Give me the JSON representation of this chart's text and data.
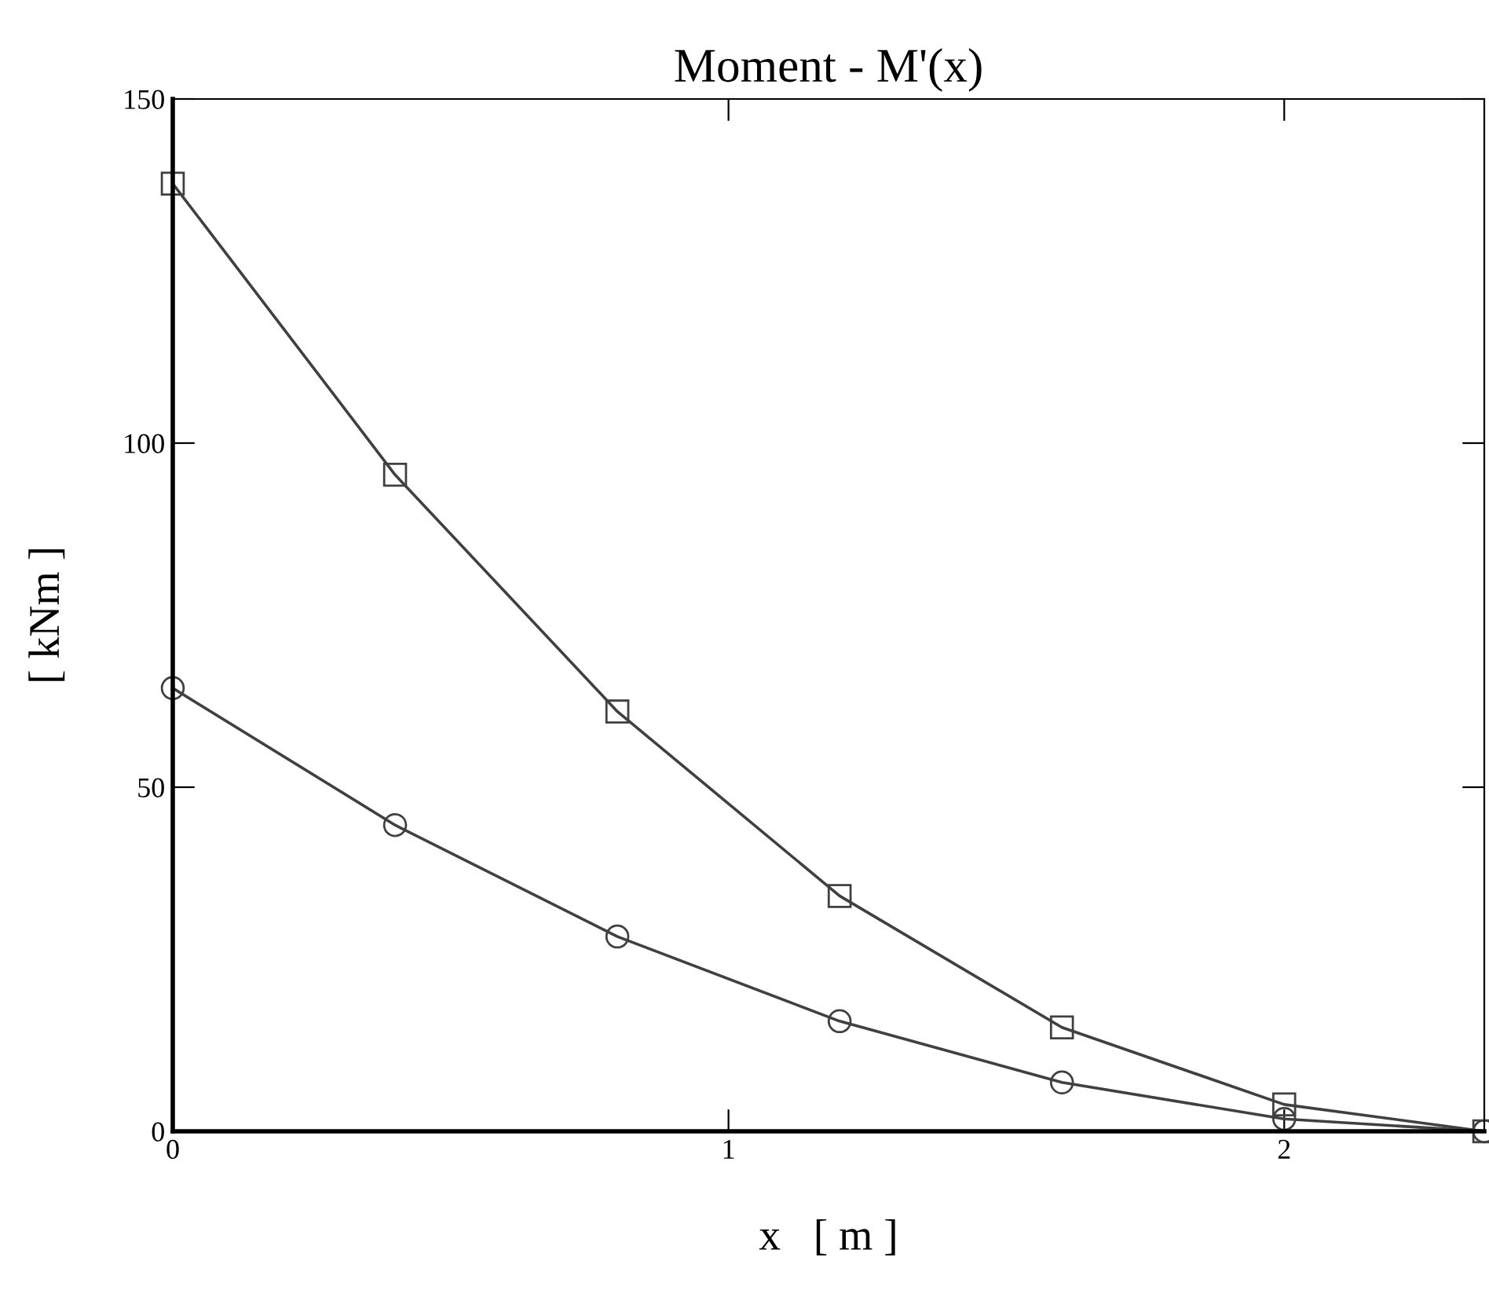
{
  "chart_data": {
    "type": "line",
    "title": "Moment - M'(x)",
    "xlabel": "x   [ m ]",
    "ylabel": "[ kNm ]",
    "x": [
      0,
      0.4,
      0.8,
      1.2,
      1.6,
      2.0,
      2.36
    ],
    "series": [
      {
        "color": "#404040",
        "marker": "square",
        "values": [
          137.7,
          95.4,
          61.0,
          34.2,
          15.1,
          3.9,
          0
        ]
      },
      {
        "color": "#404040",
        "marker": "circle",
        "values": [
          64.4,
          44.5,
          28.3,
          16.0,
          7.1,
          1.8,
          0
        ]
      }
    ],
    "xlim": [
      0,
      2.36
    ],
    "ylim": [
      0,
      150
    ],
    "xticks": [
      0,
      1,
      2
    ],
    "yticks": [
      0,
      50,
      100,
      150
    ],
    "grid": false,
    "line_style": "solid"
  }
}
